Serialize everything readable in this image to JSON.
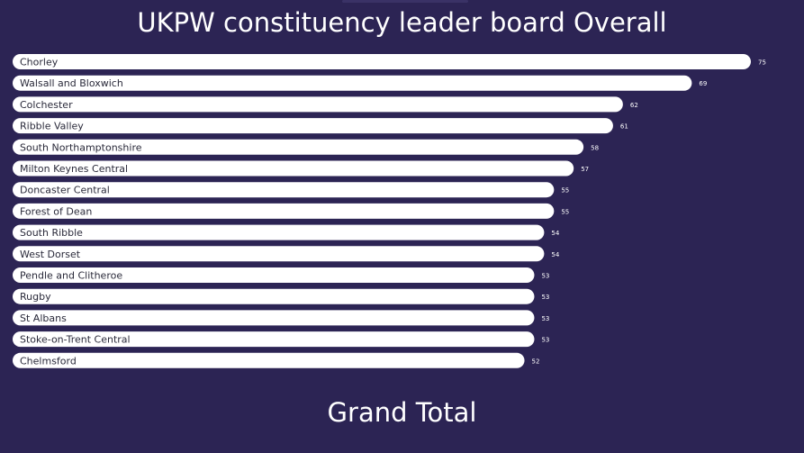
{
  "header": {
    "title": "UKPW constituency leader board Overall"
  },
  "footer": {
    "title": "Grand Total"
  },
  "colors": {
    "background": "#2c2454",
    "bar": "#ffffff",
    "bar_text": "#2a2a3a",
    "value_text": "#ffffff"
  },
  "chart_data": {
    "type": "bar",
    "orientation": "horizontal",
    "title": "UKPW constituency leader board Overall",
    "categories": [
      "Chorley",
      "Walsall and Bloxwich",
      "Colchester",
      "Ribble Valley",
      "South Northamptonshire",
      "Milton Keynes Central",
      "Doncaster Central",
      "Forest of Dean",
      "South Ribble",
      "West Dorset",
      "Pendle and Clitheroe",
      "Rugby",
      "St Albans",
      "Stoke-on-Trent Central",
      "Chelmsford"
    ],
    "values": [
      75,
      69,
      62,
      61,
      58,
      57,
      55,
      55,
      54,
      54,
      53,
      53,
      53,
      53,
      52
    ],
    "xlim": [
      0,
      75
    ],
    "grid": false,
    "legend": "none",
    "data_labels": true
  }
}
